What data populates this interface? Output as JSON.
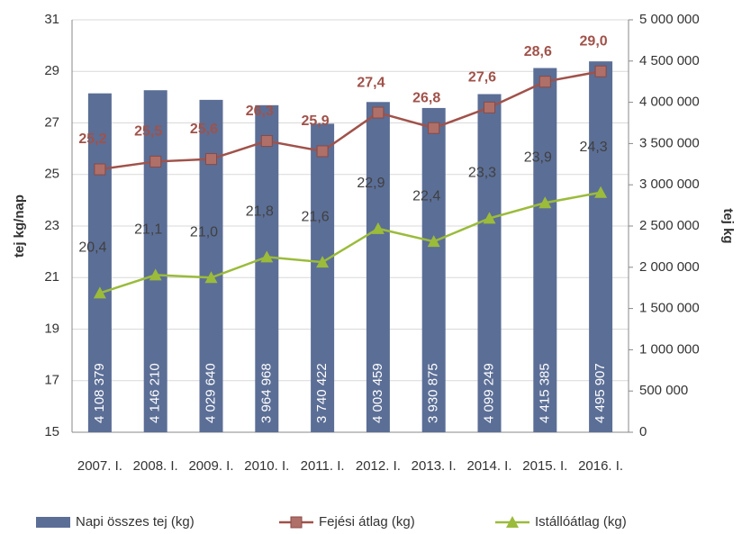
{
  "chart_data": {
    "type": "bar-line",
    "categories": [
      "2007. I.",
      "2008. I.",
      "2009. I.",
      "2010. I.",
      "2011. I.",
      "2012. I.",
      "2013. I.",
      "2014. I.",
      "2015. I.",
      "2016. I."
    ],
    "ylabel": "tej kg/nap",
    "y2label": "tej kg",
    "ylim": [
      15,
      31
    ],
    "yticks": [
      15,
      17,
      19,
      21,
      23,
      25,
      27,
      29,
      31
    ],
    "y2lim": [
      0,
      5000000
    ],
    "y2ticks": [
      0,
      {
        "value": 500000,
        "label": "500 000"
      },
      {
        "value": 1000000,
        "label": "1 000 000"
      },
      {
        "value": 1500000,
        "label": "1 500 000"
      },
      {
        "value": 2000000,
        "label": "2 000 000"
      },
      {
        "value": 2500000,
        "label": "2 500 000"
      },
      {
        "value": 3000000,
        "label": "3 000 000"
      },
      {
        "value": 3500000,
        "label": "3 500 000"
      },
      {
        "value": 4000000,
        "label": "4 000 000"
      },
      {
        "value": 4500000,
        "label": "4 500 000"
      },
      {
        "value": 5000000,
        "label": "5 000 000"
      }
    ],
    "grid": true,
    "legend": "bottom",
    "series": [
      {
        "name": "Napi összes tej (kg)",
        "kind": "bar",
        "axis": "y2",
        "color": "#5b6e96",
        "values": [
          4108379,
          4146210,
          4029640,
          3964968,
          3740422,
          4003459,
          3930875,
          4099249,
          4415385,
          4495907
        ],
        "value_labels": [
          "4 108 379",
          "4 146 210",
          "4 029 640",
          "3 964 968",
          "3 740 422",
          "4 003 459",
          "3 930 875",
          "4 099 249",
          "4 415 385",
          "4 495 907"
        ]
      },
      {
        "name": "Fejési átlag (kg)",
        "kind": "line",
        "color": "#a0524a",
        "values": [
          25.2,
          25.5,
          25.6,
          26.3,
          25.9,
          27.4,
          26.8,
          27.6,
          28.6,
          29.0
        ],
        "value_labels": [
          "25,2",
          "25,5",
          "25,6",
          "26,3",
          "25,9",
          "27,4",
          "26,8",
          "27,6",
          "28,6",
          "29,0"
        ]
      },
      {
        "name": "Istállóátlag (kg)",
        "kind": "line",
        "color": "#9bbb3b",
        "values": [
          20.4,
          21.1,
          21.0,
          21.8,
          21.6,
          22.9,
          22.4,
          23.3,
          23.9,
          24.3
        ],
        "value_labels": [
          "20,4",
          "21,1",
          "21,0",
          "21,8",
          "21,6",
          "22,9",
          "22,4",
          "23,3",
          "23,9",
          "24,3"
        ]
      }
    ]
  }
}
